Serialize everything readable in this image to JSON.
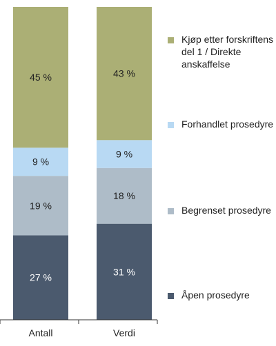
{
  "chart_data": {
    "type": "bar",
    "stacked": true,
    "percent_stacked": true,
    "categories": [
      "Antall",
      "Verdi"
    ],
    "series": [
      {
        "name": "Åpen prosedyre",
        "values": [
          27,
          31
        ],
        "labels": [
          "27 %",
          "31 %"
        ],
        "color": "#4b5a6e",
        "label_color": "#ffffff"
      },
      {
        "name": "Begrenset prosedyre",
        "values": [
          19,
          18
        ],
        "labels": [
          "19 %",
          "18 %"
        ],
        "color": "#aebcc8",
        "label_color": "#222222"
      },
      {
        "name": "Forhandlet prosedyre",
        "values": [
          9,
          9
        ],
        "labels": [
          "9 %",
          "9 %"
        ],
        "color": "#b8d9f3",
        "label_color": "#222222"
      },
      {
        "name": "Kjøp etter forskriftens del 1 / Direkte anskaffelse",
        "name_lines": [
          "Kjøp etter forskriftens",
          "del 1 / Direkte",
          "anskaffelse"
        ],
        "values": [
          45,
          43
        ],
        "labels": [
          "45 %",
          "43 %"
        ],
        "color": "#abaf75",
        "label_color": "#222222"
      }
    ],
    "ylim": [
      0,
      100
    ],
    "legend_position": "right",
    "grid": false,
    "title": "",
    "xlabel": "",
    "ylabel": ""
  }
}
